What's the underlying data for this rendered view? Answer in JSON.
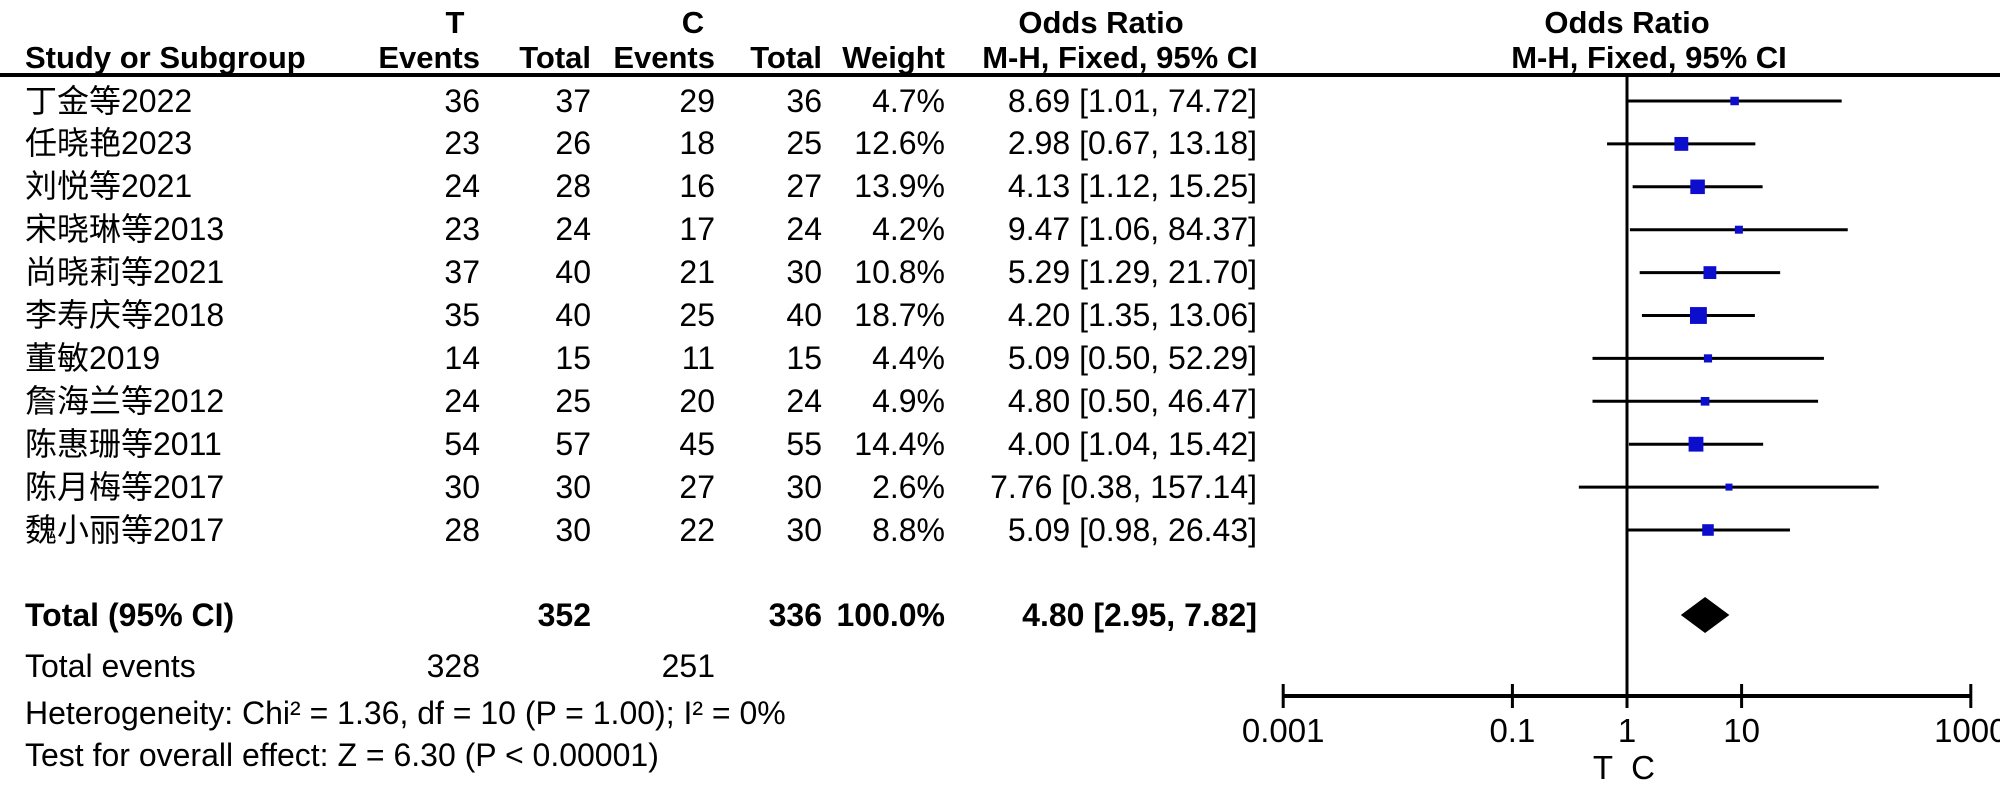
{
  "header": {
    "group_t": "T",
    "group_c": "C",
    "col_study": "Study or Subgroup",
    "col_events": "Events",
    "col_total": "Total",
    "col_weight": "Weight",
    "or_title": "Odds Ratio",
    "or_subtitle": "M-H, Fixed, 95% CI"
  },
  "studies": [
    {
      "name": "丁金等2022",
      "t_events": 36,
      "t_total": 37,
      "c_events": 29,
      "c_total": 36,
      "weight": 4.7,
      "weight_label": "4.7%",
      "or_text": "8.69 [1.01, 74.72]",
      "or": 8.69,
      "ci_low": 1.01,
      "ci_high": 74.72
    },
    {
      "name": "任晓艳2023",
      "t_events": 23,
      "t_total": 26,
      "c_events": 18,
      "c_total": 25,
      "weight": 12.6,
      "weight_label": "12.6%",
      "or_text": "2.98 [0.67, 13.18]",
      "or": 2.98,
      "ci_low": 0.67,
      "ci_high": 13.18
    },
    {
      "name": "刘悦等2021",
      "t_events": 24,
      "t_total": 28,
      "c_events": 16,
      "c_total": 27,
      "weight": 13.9,
      "weight_label": "13.9%",
      "or_text": "4.13 [1.12, 15.25]",
      "or": 4.13,
      "ci_low": 1.12,
      "ci_high": 15.25
    },
    {
      "name": "宋晓琳等2013",
      "t_events": 23,
      "t_total": 24,
      "c_events": 17,
      "c_total": 24,
      "weight": 4.2,
      "weight_label": "4.2%",
      "or_text": "9.47 [1.06, 84.37]",
      "or": 9.47,
      "ci_low": 1.06,
      "ci_high": 84.37
    },
    {
      "name": "尚晓莉等2021",
      "t_events": 37,
      "t_total": 40,
      "c_events": 21,
      "c_total": 30,
      "weight": 10.8,
      "weight_label": "10.8%",
      "or_text": "5.29 [1.29, 21.70]",
      "or": 5.29,
      "ci_low": 1.29,
      "ci_high": 21.7
    },
    {
      "name": "李寿庆等2018",
      "t_events": 35,
      "t_total": 40,
      "c_events": 25,
      "c_total": 40,
      "weight": 18.7,
      "weight_label": "18.7%",
      "or_text": "4.20 [1.35, 13.06]",
      "or": 4.2,
      "ci_low": 1.35,
      "ci_high": 13.06
    },
    {
      "name": "董敏2019",
      "t_events": 14,
      "t_total": 15,
      "c_events": 11,
      "c_total": 15,
      "weight": 4.4,
      "weight_label": "4.4%",
      "or_text": "5.09 [0.50, 52.29]",
      "or": 5.09,
      "ci_low": 0.5,
      "ci_high": 52.29
    },
    {
      "name": "詹海兰等2012",
      "t_events": 24,
      "t_total": 25,
      "c_events": 20,
      "c_total": 24,
      "weight": 4.9,
      "weight_label": "4.9%",
      "or_text": "4.80 [0.50, 46.47]",
      "or": 4.8,
      "ci_low": 0.5,
      "ci_high": 46.47
    },
    {
      "name": "陈惠珊等2011",
      "t_events": 54,
      "t_total": 57,
      "c_events": 45,
      "c_total": 55,
      "weight": 14.4,
      "weight_label": "14.4%",
      "or_text": "4.00 [1.04, 15.42]",
      "or": 4.0,
      "ci_low": 1.04,
      "ci_high": 15.42
    },
    {
      "name": "陈月梅等2017",
      "t_events": 30,
      "t_total": 30,
      "c_events": 27,
      "c_total": 30,
      "weight": 2.6,
      "weight_label": "2.6%",
      "or_text": "7.76 [0.38, 157.14]",
      "or": 7.76,
      "ci_low": 0.38,
      "ci_high": 157.14
    },
    {
      "name": "魏小丽等2017",
      "t_events": 28,
      "t_total": 30,
      "c_events": 22,
      "c_total": 30,
      "weight": 8.8,
      "weight_label": "8.8%",
      "or_text": "5.09 [0.98, 26.43]",
      "or": 5.09,
      "ci_low": 0.98,
      "ci_high": 26.43
    }
  ],
  "totals": {
    "label": "Total (95% CI)",
    "t_total": 352,
    "c_total": 336,
    "weight_label": "100.0%",
    "or_text": "4.80 [2.95, 7.82]",
    "or": 4.8,
    "ci_low": 2.95,
    "ci_high": 7.82,
    "total_events_label": "Total events",
    "t_events": 328,
    "c_events": 251
  },
  "footer": {
    "heterogeneity": "Heterogeneity: Chi² = 1.36, df = 10 (P = 1.00); I² = 0%",
    "overall_effect": "Test for overall effect: Z = 6.30 (P < 0.00001)"
  },
  "axis": {
    "scale": "log10",
    "ticks": [
      0.001,
      0.1,
      1,
      10,
      1000
    ],
    "tick_labels": [
      "0.001",
      "0.1",
      "1",
      "10",
      "1000"
    ],
    "favours_left_label": "T",
    "favours_right_label": "C"
  },
  "colors": {
    "square": "#0D0DCE",
    "ci_line": "#000000",
    "diamond": "#000000",
    "axis": "#000000",
    "text": "#000000"
  },
  "chart_data": {
    "type": "forest",
    "title": "Odds Ratio",
    "effect_measure": "M-H, Fixed, 95% CI",
    "x_scale": "log10",
    "x_ticks": [
      0.001,
      0.1,
      1,
      10,
      1000
    ],
    "x_range": [
      0.001,
      1000
    ],
    "favours_labels": [
      "T",
      "C"
    ],
    "categories": [
      "丁金等2022",
      "任晓艳2023",
      "刘悦等2021",
      "宋晓琳等2013",
      "尚晓莉等2021",
      "李寿庆等2018",
      "董敏2019",
      "詹海兰等2012",
      "陈惠珊等2011",
      "陈月梅等2017",
      "魏小丽等2017"
    ],
    "odds_ratios": [
      8.69,
      2.98,
      4.13,
      9.47,
      5.29,
      4.2,
      5.09,
      4.8,
      4.0,
      7.76,
      5.09
    ],
    "ci_low": [
      1.01,
      0.67,
      1.12,
      1.06,
      1.29,
      1.35,
      0.5,
      0.5,
      1.04,
      0.38,
      0.98
    ],
    "ci_high": [
      74.72,
      13.18,
      15.25,
      84.37,
      21.7,
      13.06,
      52.29,
      46.47,
      15.42,
      157.14,
      26.43
    ],
    "weights_pct": [
      4.7,
      12.6,
      13.9,
      4.2,
      10.8,
      18.7,
      4.4,
      4.9,
      14.4,
      2.6,
      8.8
    ],
    "total": {
      "or": 4.8,
      "ci_low": 2.95,
      "ci_high": 7.82,
      "weight_pct": 100.0
    },
    "heterogeneity": {
      "chi2": 1.36,
      "df": 10,
      "p": 1.0,
      "i2_pct": 0
    },
    "overall_effect": {
      "z": 6.3,
      "p": "< 0.00001"
    }
  }
}
